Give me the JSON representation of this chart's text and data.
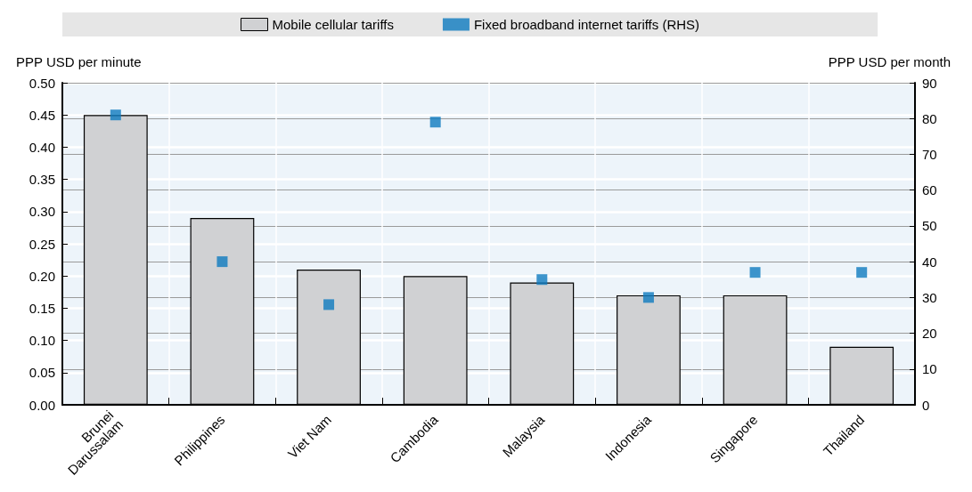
{
  "chart_data": {
    "type": "bar",
    "categories": [
      "Brunei Darussalam",
      "Philippines",
      "Viet Nam",
      "Cambodia",
      "Malaysia",
      "Indonesia",
      "Singapore",
      "Thailand"
    ],
    "series": [
      {
        "name": "Mobile cellular tariffs",
        "color": "#d0d1d3",
        "values": [
          0.45,
          0.29,
          0.21,
          0.2,
          0.19,
          0.17,
          0.17,
          0.09
        ]
      },
      {
        "name": "Fixed broadband internet tariffs (RHS)",
        "type": "scatter",
        "axis": "y2",
        "color": "#0e7bbf",
        "values": [
          81,
          40,
          28,
          79,
          35,
          30,
          37,
          37
        ]
      }
    ],
    "ylabel": "PPP USD per minute",
    "y2label": "PPP USD per month",
    "ylim": [
      0,
      0.5
    ],
    "yticks": [
      {
        "value": 0,
        "label": "0.00"
      },
      {
        "value": 0.05,
        "label": "0.05"
      },
      {
        "value": 0.1,
        "label": "0.10"
      },
      {
        "value": 0.15,
        "label": "0.15"
      },
      {
        "value": 0.2,
        "label": "0.20"
      },
      {
        "value": 0.25,
        "label": "0.25"
      },
      {
        "value": 0.3,
        "label": "0.30"
      },
      {
        "value": 0.35,
        "label": "0.35"
      },
      {
        "value": 0.4,
        "label": "0.40"
      },
      {
        "value": 0.45,
        "label": "0.45"
      },
      {
        "value": 0.5,
        "label": "0.50"
      }
    ],
    "y2lim": [
      0,
      90
    ],
    "y2ticks": [
      0,
      10,
      20,
      30,
      40,
      50,
      60,
      70,
      80,
      90
    ],
    "grid": "y",
    "legend": "top",
    "marker": "square"
  }
}
